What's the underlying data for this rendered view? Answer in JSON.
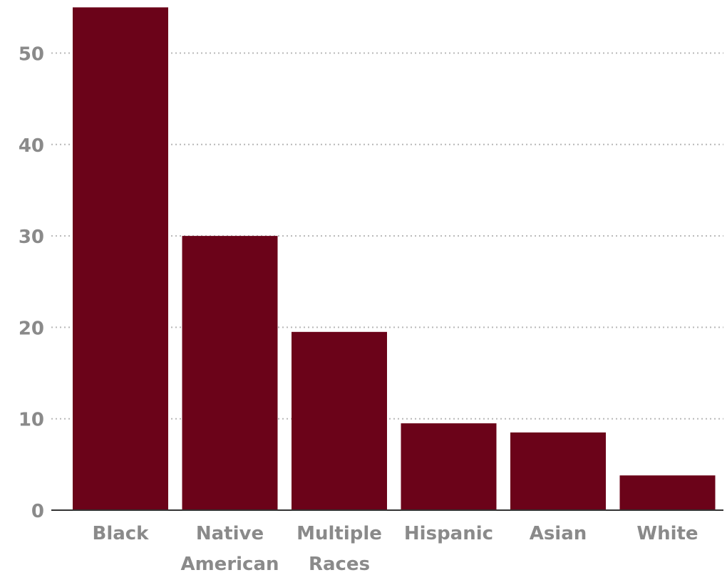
{
  "chart_data": {
    "type": "bar",
    "title": "",
    "xlabel": "",
    "ylabel": "",
    "categories": [
      [
        "Black"
      ],
      [
        "Native",
        "American"
      ],
      [
        "Multiple",
        "Races"
      ],
      [
        "Hispanic"
      ],
      [
        "Asian"
      ],
      [
        "White"
      ]
    ],
    "values": [
      55,
      30,
      19.5,
      9.5,
      8.5,
      3.8
    ],
    "ylim": [
      0,
      55
    ],
    "yticks": [
      0,
      10,
      20,
      30,
      40,
      50
    ],
    "grid": true,
    "legend": "none",
    "colors": {
      "bar": "#6b0319",
      "grid": "#b8b8b8",
      "axis": "#333333",
      "label": "#8a8a8a"
    }
  }
}
